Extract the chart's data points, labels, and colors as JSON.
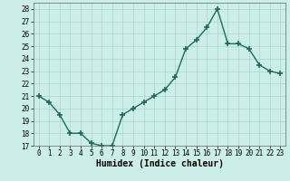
{
  "xlabel": "Humidex (Indice chaleur)",
  "x": [
    0,
    1,
    2,
    3,
    4,
    5,
    6,
    7,
    8,
    9,
    10,
    11,
    12,
    13,
    14,
    15,
    16,
    17,
    18,
    19,
    20,
    21,
    22,
    23
  ],
  "y": [
    21,
    20.5,
    19.5,
    18,
    18,
    17.2,
    17,
    17,
    19.5,
    20,
    20.5,
    21,
    21.5,
    22.5,
    24.8,
    25.5,
    26.5,
    28,
    25.2,
    25.2,
    24.8,
    23.5,
    23,
    22.8
  ],
  "line_color": "#1a6b5a",
  "marker": "+",
  "marker_size": 4,
  "background_color": "#cceee8",
  "grid_color": "#aad4ce",
  "ylim": [
    17,
    28.5
  ],
  "yticks": [
    17,
    18,
    19,
    20,
    21,
    22,
    23,
    24,
    25,
    26,
    27,
    28
  ],
  "xticks": [
    0,
    1,
    2,
    3,
    4,
    5,
    6,
    7,
    8,
    9,
    10,
    11,
    12,
    13,
    14,
    15,
    16,
    17,
    18,
    19,
    20,
    21,
    22,
    23
  ],
  "tick_fontsize": 5.5,
  "xlabel_fontsize": 7,
  "line_width": 1.0
}
